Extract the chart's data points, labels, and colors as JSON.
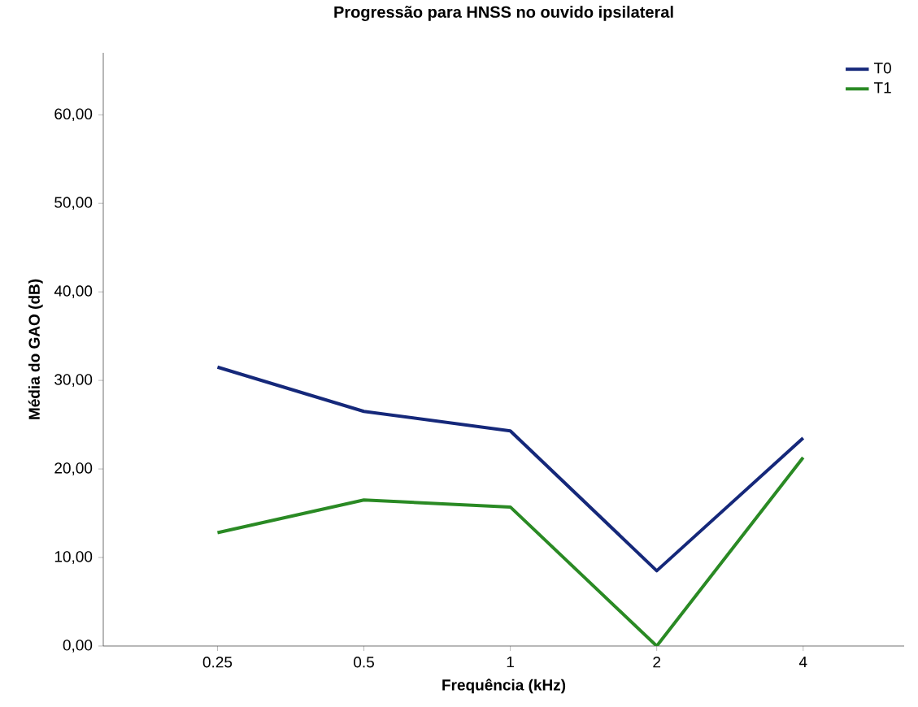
{
  "chart_data": {
    "type": "line",
    "title": "Progressão para HNSS no ouvido ipsilateral",
    "xlabel": "Frequência (kHz)",
    "ylabel": "Média do GAO (dB)",
    "categories": [
      "0.25",
      "0.5",
      "1",
      "2",
      "4"
    ],
    "series": [
      {
        "name": "T0",
        "color": "#15287a",
        "values": [
          31.5,
          26.5,
          24.3,
          8.5,
          23.5
        ]
      },
      {
        "name": "T1",
        "color": "#2a8a24",
        "values": [
          12.8,
          16.5,
          15.7,
          0,
          21.3
        ]
      }
    ],
    "ylim": [
      0,
      67
    ],
    "yticks": [
      {
        "value": 0,
        "label": "0,00"
      },
      {
        "value": 10,
        "label": "10,00"
      },
      {
        "value": 20,
        "label": "20,00"
      },
      {
        "value": 30,
        "label": "30,00"
      },
      {
        "value": 40,
        "label": "40,00"
      },
      {
        "value": 50,
        "label": "50,00"
      },
      {
        "value": 60,
        "label": "60,00"
      }
    ],
    "legend": "top right",
    "grid": false,
    "marker": "none",
    "line_style": "solid"
  }
}
